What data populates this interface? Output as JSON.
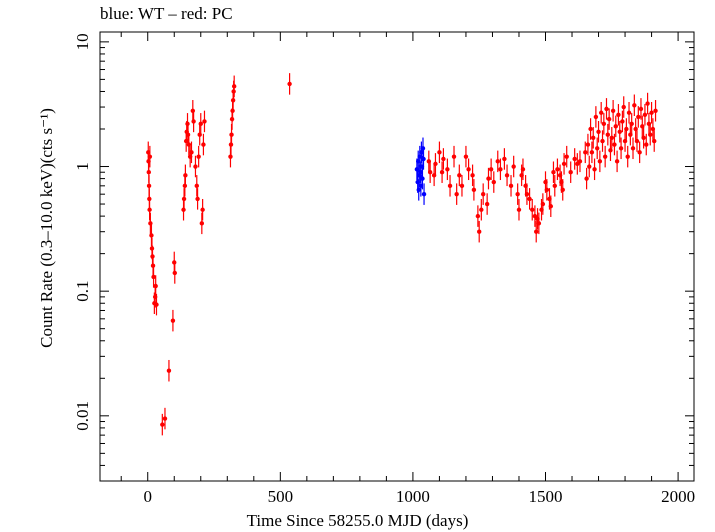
{
  "chart_data": {
    "type": "scatter",
    "title": "blue: WT – red: PC",
    "xlabel": "Time Since 58255.0 MJD (days)",
    "ylabel": "Count Rate (0.3–10.0 keV)(cts s⁻¹)",
    "xlim": [
      -180,
      2060
    ],
    "ylim": [
      0.003,
      12
    ],
    "yscale": "log",
    "x_ticks": [
      0,
      500,
      1000,
      1500,
      2000
    ],
    "x_tick_labels": [
      "0",
      "500",
      "1000",
      "1500",
      "2000"
    ],
    "y_ticks": [
      0.01,
      0.1,
      1,
      10
    ],
    "y_tick_labels": [
      "0.01",
      "0.1",
      "1",
      "10"
    ],
    "grid": false,
    "series": [
      {
        "name": "WT",
        "color": "#0000ff",
        "points": [
          [
            1015,
            0.95
          ],
          [
            1018,
            0.75
          ],
          [
            1020,
            1.1
          ],
          [
            1022,
            0.65
          ],
          [
            1024,
            0.85
          ],
          [
            1026,
            1.2
          ],
          [
            1028,
            0.9
          ],
          [
            1030,
            0.7
          ],
          [
            1032,
            1.3
          ],
          [
            1034,
            1.0
          ],
          [
            1036,
            0.8
          ],
          [
            1038,
            1.4
          ],
          [
            1040,
            1.15
          ],
          [
            1042,
            0.6
          ]
        ]
      },
      {
        "name": "PC",
        "color": "#ff0000",
        "points": [
          [
            2,
            1.3
          ],
          [
            3,
            1.1
          ],
          [
            4,
            0.9
          ],
          [
            5,
            0.7
          ],
          [
            6,
            0.55
          ],
          [
            7,
            0.45
          ],
          [
            8,
            1.2
          ],
          [
            10,
            0.35
          ],
          [
            14,
            0.28
          ],
          [
            16,
            0.22
          ],
          [
            18,
            0.19
          ],
          [
            20,
            0.16
          ],
          [
            22,
            0.13
          ],
          [
            25,
            0.08
          ],
          [
            28,
            0.09
          ],
          [
            30,
            0.11
          ],
          [
            33,
            0.078
          ],
          [
            55,
            0.0085
          ],
          [
            65,
            0.0095
          ],
          [
            80,
            0.023
          ],
          [
            95,
            0.058
          ],
          [
            100,
            0.17
          ],
          [
            102,
            0.14
          ],
          [
            135,
            0.45
          ],
          [
            137,
            0.55
          ],
          [
            140,
            0.7
          ],
          [
            142,
            0.85
          ],
          [
            145,
            1.6
          ],
          [
            147,
            1.9
          ],
          [
            150,
            2.2
          ],
          [
            152,
            1.8
          ],
          [
            155,
            1.5
          ],
          [
            160,
            1.2
          ],
          [
            165,
            1.3
          ],
          [
            170,
            2.8
          ],
          [
            173,
            2.3
          ],
          [
            180,
            1.0
          ],
          [
            185,
            0.7
          ],
          [
            188,
            0.55
          ],
          [
            192,
            1.2
          ],
          [
            196,
            1.8
          ],
          [
            200,
            2.2
          ],
          [
            204,
            0.35
          ],
          [
            207,
            0.45
          ],
          [
            210,
            1.5
          ],
          [
            214,
            2.3
          ],
          [
            312,
            1.2
          ],
          [
            314,
            1.5
          ],
          [
            316,
            1.8
          ],
          [
            318,
            2.4
          ],
          [
            320,
            2.8
          ],
          [
            322,
            3.4
          ],
          [
            324,
            4.0
          ],
          [
            326,
            4.4
          ],
          [
            535,
            4.6
          ],
          [
            1060,
            1.1
          ],
          [
            1065,
            0.9
          ],
          [
            1080,
            0.85
          ],
          [
            1085,
            1.05
          ],
          [
            1100,
            1.3
          ],
          [
            1110,
            0.9
          ],
          [
            1115,
            1.15
          ],
          [
            1130,
            0.95
          ],
          [
            1140,
            0.7
          ],
          [
            1155,
            1.2
          ],
          [
            1165,
            0.6
          ],
          [
            1175,
            0.85
          ],
          [
            1185,
            0.7
          ],
          [
            1200,
            1.2
          ],
          [
            1210,
            0.95
          ],
          [
            1225,
            0.85
          ],
          [
            1230,
            0.65
          ],
          [
            1245,
            0.4
          ],
          [
            1250,
            0.3
          ],
          [
            1258,
            0.45
          ],
          [
            1265,
            0.6
          ],
          [
            1280,
            0.5
          ],
          [
            1285,
            0.8
          ],
          [
            1295,
            0.95
          ],
          [
            1305,
            0.75
          ],
          [
            1320,
            1.1
          ],
          [
            1330,
            0.95
          ],
          [
            1345,
            1.15
          ],
          [
            1355,
            0.85
          ],
          [
            1370,
            0.7
          ],
          [
            1380,
            1.0
          ],
          [
            1395,
            0.6
          ],
          [
            1400,
            0.45
          ],
          [
            1410,
            0.85
          ],
          [
            1415,
            0.95
          ],
          [
            1425,
            0.7
          ],
          [
            1430,
            0.6
          ],
          [
            1440,
            0.55
          ],
          [
            1450,
            0.45
          ],
          [
            1460,
            0.4
          ],
          [
            1465,
            0.3
          ],
          [
            1470,
            0.38
          ],
          [
            1475,
            0.35
          ],
          [
            1485,
            0.45
          ],
          [
            1490,
            0.5
          ],
          [
            1500,
            0.75
          ],
          [
            1505,
            0.65
          ],
          [
            1515,
            0.55
          ],
          [
            1520,
            0.48
          ],
          [
            1530,
            0.9
          ],
          [
            1535,
            0.7
          ],
          [
            1545,
            0.95
          ],
          [
            1555,
            0.85
          ],
          [
            1560,
            0.75
          ],
          [
            1565,
            0.65
          ],
          [
            1570,
            1.05
          ],
          [
            1580,
            1.2
          ],
          [
            1595,
            0.9
          ],
          [
            1610,
            1.15
          ],
          [
            1620,
            1.05
          ],
          [
            1630,
            1.1
          ],
          [
            1650,
            1.3
          ],
          [
            1655,
            0.8
          ],
          [
            1660,
            1.5
          ],
          [
            1665,
            1.0
          ],
          [
            1670,
            2.0
          ],
          [
            1675,
            1.3
          ],
          [
            1680,
            1.7
          ],
          [
            1685,
            0.95
          ],
          [
            1690,
            2.5
          ],
          [
            1695,
            1.4
          ],
          [
            1700,
            1.9
          ],
          [
            1705,
            1.1
          ],
          [
            1710,
            2.7
          ],
          [
            1715,
            1.6
          ],
          [
            1720,
            2.2
          ],
          [
            1725,
            1.2
          ],
          [
            1730,
            2.9
          ],
          [
            1735,
            1.8
          ],
          [
            1740,
            2.4
          ],
          [
            1745,
            1.35
          ],
          [
            1750,
            1.7
          ],
          [
            1755,
            2.8
          ],
          [
            1760,
            1.5
          ],
          [
            1765,
            2.1
          ],
          [
            1770,
            1.1
          ],
          [
            1775,
            2.6
          ],
          [
            1780,
            1.9
          ],
          [
            1785,
            1.4
          ],
          [
            1790,
            2.3
          ],
          [
            1795,
            3.0
          ],
          [
            1800,
            1.6
          ],
          [
            1805,
            2.0
          ],
          [
            1810,
            1.2
          ],
          [
            1815,
            2.7
          ],
          [
            1820,
            1.8
          ],
          [
            1825,
            2.2
          ],
          [
            1830,
            1.4
          ],
          [
            1835,
            3.1
          ],
          [
            1840,
            2.0
          ],
          [
            1845,
            1.6
          ],
          [
            1850,
            2.5
          ],
          [
            1855,
            1.3
          ],
          [
            1860,
            2.9
          ],
          [
            1865,
            2.1
          ],
          [
            1870,
            1.7
          ],
          [
            1875,
            2.6
          ],
          [
            1880,
            1.5
          ],
          [
            1885,
            3.2
          ],
          [
            1890,
            2.2
          ],
          [
            1895,
            1.8
          ],
          [
            1900,
            2.7
          ],
          [
            1905,
            2.0
          ],
          [
            1910,
            1.6
          ],
          [
            1915,
            2.8
          ]
        ]
      }
    ]
  }
}
